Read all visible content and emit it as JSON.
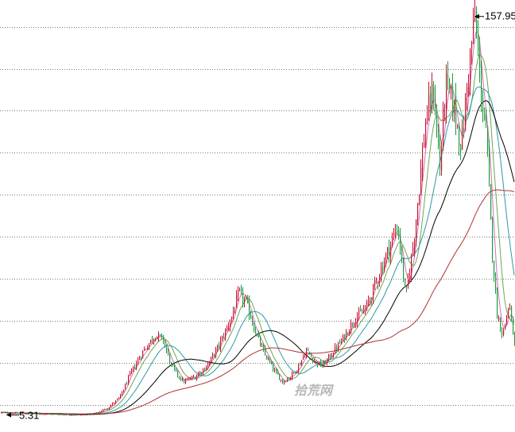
{
  "chart_data": {
    "type": "candlestick",
    "title": "",
    "xlabel": "",
    "ylabel": "",
    "grid": true,
    "high_label": "157.95",
    "low_label": "5.31",
    "watermark": "拾荒网",
    "colors": {
      "up": "#c8102e",
      "down": "#1a9a3a",
      "ma_short": "#d070c0",
      "ma_mid1": "#6aa84f",
      "ma_mid2": "#2a9aa8",
      "ma_long": "#000000",
      "ma_longest": "#b03030",
      "grid": "#7a7a7a"
    },
    "price_path": [
      [
        0,
        6.2
      ],
      [
        40,
        5.8
      ],
      [
        80,
        5.5
      ],
      [
        100,
        5.31
      ],
      [
        120,
        6.0
      ],
      [
        135,
        8.0
      ],
      [
        150,
        12.0
      ],
      [
        165,
        22.0
      ],
      [
        180,
        30.0
      ],
      [
        195,
        36.0
      ],
      [
        205,
        34.0
      ],
      [
        215,
        24.0
      ],
      [
        230,
        18.0
      ],
      [
        245,
        20.0
      ],
      [
        260,
        24.0
      ],
      [
        275,
        32.0
      ],
      [
        290,
        42.0
      ],
      [
        300,
        52.0
      ],
      [
        310,
        48.0
      ],
      [
        320,
        38.0
      ],
      [
        330,
        30.0
      ],
      [
        345,
        22.0
      ],
      [
        355,
        18.0
      ],
      [
        365,
        20.0
      ],
      [
        375,
        24.0
      ],
      [
        385,
        30.0
      ],
      [
        395,
        26.0
      ],
      [
        405,
        24.0
      ],
      [
        415,
        28.0
      ],
      [
        430,
        34.0
      ],
      [
        445,
        42.0
      ],
      [
        460,
        46.0
      ],
      [
        470,
        54.0
      ],
      [
        480,
        62.0
      ],
      [
        490,
        70.0
      ],
      [
        500,
        78.0
      ],
      [
        510,
        50.0
      ],
      [
        520,
        72.0
      ],
      [
        528,
        96.0
      ],
      [
        535,
        118.0
      ],
      [
        545,
        130.0
      ],
      [
        553,
        100.0
      ],
      [
        560,
        132.0
      ],
      [
        570,
        124.0
      ],
      [
        580,
        108.0
      ],
      [
        590,
        140.0
      ],
      [
        597,
        157.95
      ],
      [
        604,
        132.0
      ],
      [
        612,
        110.0
      ],
      [
        618,
        72.0
      ],
      [
        625,
        44.0
      ],
      [
        632,
        36.0
      ],
      [
        640,
        48.0
      ],
      [
        648,
        30.0
      ]
    ]
  }
}
